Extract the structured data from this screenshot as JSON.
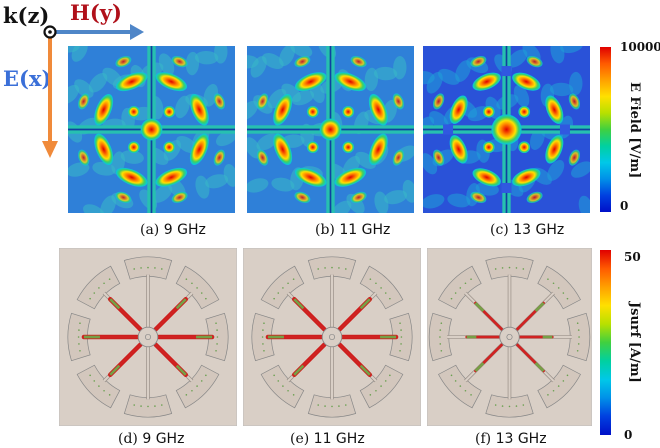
{
  "axes": {
    "k_label": "k(z)",
    "h_label": "H(y)",
    "e_label": "E(x)",
    "colors": {
      "k": "#111111",
      "h": "#b0101a",
      "e": "#3a6fd8",
      "h_arrow": "#4f86c8",
      "e_arrow": "#f08a3a"
    }
  },
  "efield": {
    "colorbar": {
      "title": "E Field [V/m]",
      "max": "10000",
      "min": "0"
    },
    "panels": [
      {
        "caption_prefix": "(a)",
        "caption_freq": "9 GHz"
      },
      {
        "caption_prefix": "(b)",
        "caption_freq": "11 GHz"
      },
      {
        "caption_prefix": "(c)",
        "caption_freq": "13 GHz"
      }
    ]
  },
  "jsurf": {
    "colorbar": {
      "title": "Jsurf [A/m]",
      "max": "50",
      "min": "0"
    },
    "panels": [
      {
        "caption_prefix": "(d)",
        "caption_freq": "9 GHz"
      },
      {
        "caption_prefix": "(e)",
        "caption_freq": "11 GHz"
      },
      {
        "caption_prefix": "(f)",
        "caption_freq": "13 GHz"
      }
    ]
  }
}
